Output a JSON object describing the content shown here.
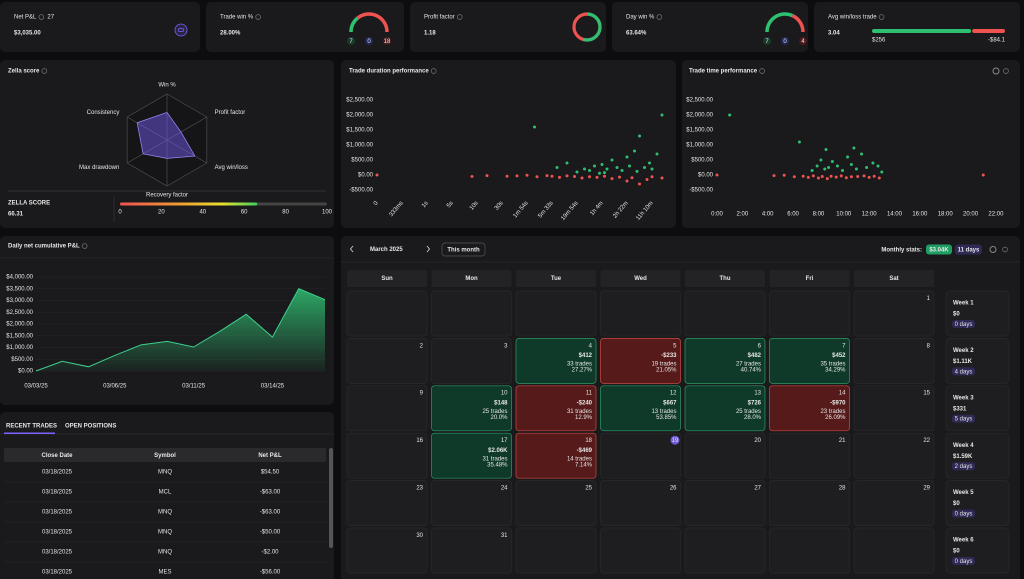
{
  "kpis": [
    {
      "title": "Net P&L",
      "badge": "27",
      "value": "$3,035.00"
    },
    {
      "title": "Trade win %",
      "value": "28.00%",
      "gauge": [
        7,
        0,
        18
      ]
    },
    {
      "title": "Profit factor",
      "value": 1.18
    },
    {
      "title": "Day win %",
      "value": "63.64%",
      "gauge": [
        7,
        0,
        4
      ]
    },
    {
      "title": "Avg win/loss trade",
      "value": 3.04,
      "avg_win": 256,
      "avg_win_label": "$256",
      "avg_loss": -84.1,
      "avg_loss_label": "-$84.1"
    }
  ],
  "chart_data": [
    {
      "type": "radar",
      "title": "Zella score",
      "categories": [
        "Win %",
        "Profit factor",
        "Avg win/loss",
        "Recovery factor",
        "Max drawdown",
        "Consistency"
      ],
      "values": [
        60,
        35,
        70,
        40,
        60,
        75
      ],
      "ylim": [
        0,
        100
      ],
      "color": "#7b61ff"
    },
    {
      "type": "scatter",
      "title": "Trade duration performance",
      "xlim": [
        -0.5,
        11.6
      ],
      "xticks": [
        0,
        {
          "value": 1,
          "label": "333ms"
        },
        {
          "value": 2,
          "label": "1s"
        },
        {
          "value": 3,
          "label": "5s"
        },
        {
          "value": 4,
          "label": "10s"
        },
        {
          "value": 5,
          "label": "30s"
        },
        {
          "value": 6,
          "label": "1m 54s"
        },
        {
          "value": 7,
          "label": "5m 33s"
        },
        {
          "value": 8,
          "label": "19m 54s"
        },
        {
          "value": 9,
          "label": "1h 4m"
        },
        {
          "value": 10,
          "label": "2h 22m"
        },
        {
          "value": 11,
          "label": "11h 10m"
        }
      ],
      "ylim": [
        -500,
        2500
      ],
      "yticks": [
        {
          "value": -500,
          "label": "-$500.00"
        },
        {
          "value": 0,
          "label": "$0.00"
        },
        {
          "value": 500,
          "label": "$500.00"
        },
        {
          "value": 1000,
          "label": "$1,000.00"
        },
        {
          "value": 1500,
          "label": "$1,500.00"
        },
        {
          "value": 2000,
          "label": "$2,000.00"
        },
        {
          "value": 2500,
          "label": "$2,500.00"
        }
      ],
      "series": [
        {
          "color": "#2fbf71",
          "x": [
            6.3,
            7.2,
            7.6,
            8.0,
            8.3,
            8.5,
            8.7,
            9.0,
            9.2,
            9.4,
            9.6,
            9.8,
            10.0,
            10.1,
            10.3,
            10.5,
            10.7,
            10.9,
            11.0,
            11.2,
            11.4,
            9.1,
            8.9,
            10.4
          ],
          "values": [
            1600,
            250,
            400,
            100,
            200,
            150,
            300,
            350,
            200,
            500,
            250,
            150,
            600,
            300,
            800,
            1300,
            250,
            400,
            200,
            700,
            2000,
            80,
            60,
            120
          ]
        },
        {
          "color": "#ef5350",
          "x": [
            0,
            3.8,
            4.4,
            5.2,
            5.6,
            6.0,
            6.4,
            6.8,
            7.0,
            7.3,
            7.6,
            7.9,
            8.2,
            8.5,
            8.8,
            9.1,
            9.4,
            9.7,
            10.0,
            10.2,
            10.5,
            10.8,
            11.0,
            11.4
          ],
          "values": [
            0,
            -50,
            -20,
            -40,
            -30,
            -10,
            -60,
            -20,
            -40,
            -80,
            -30,
            -50,
            -100,
            -60,
            -80,
            -40,
            -120,
            -70,
            -200,
            -90,
            -300,
            -150,
            -60,
            -100
          ]
        }
      ]
    },
    {
      "type": "scatter",
      "title": "Trade time performance",
      "xlim": [
        -1,
        23
      ],
      "xticks": [
        {
          "value": 0,
          "label": "0:00"
        },
        {
          "value": 2,
          "label": "2:00"
        },
        {
          "value": 4,
          "label": "4:00"
        },
        {
          "value": 6,
          "label": "6:00"
        },
        {
          "value": 8,
          "label": "8:00"
        },
        {
          "value": 10,
          "label": "10:00"
        },
        {
          "value": 12,
          "label": "12:00"
        },
        {
          "value": 14,
          "label": "14:00"
        },
        {
          "value": 16,
          "label": "16:00"
        },
        {
          "value": 18,
          "label": "18:00"
        },
        {
          "value": 20,
          "label": "20:00"
        },
        {
          "value": 22,
          "label": "22:00"
        }
      ],
      "ylim": [
        -500,
        2500
      ],
      "yticks": [
        {
          "value": -500,
          "label": "-$500.00"
        },
        {
          "value": 0,
          "label": "$0.00"
        },
        {
          "value": 500,
          "label": "$500.00"
        },
        {
          "value": 1000,
          "label": "$1,000.00"
        },
        {
          "value": 1500,
          "label": "$1,500.00"
        },
        {
          "value": 2000,
          "label": "$2,000.00"
        },
        {
          "value": 2500,
          "label": "$2,500.00"
        }
      ],
      "series": [
        {
          "color": "#2fbf71",
          "x": [
            1,
            7.5,
            7.9,
            8.2,
            8.5,
            8.8,
            9.1,
            9.5,
            9.9,
            10.3,
            10.6,
            11.0,
            11.4,
            11.8,
            12.3,
            12.7,
            13.0,
            6.5,
            8.6,
            10.8
          ],
          "values": [
            2000,
            150,
            300,
            500,
            200,
            250,
            450,
            300,
            150,
            600,
            350,
            200,
            700,
            250,
            400,
            300,
            100,
            1100,
            850,
            900
          ]
        },
        {
          "color": "#ef5350",
          "x": [
            0,
            4.5,
            5.3,
            6.1,
            6.8,
            7.2,
            7.6,
            8.0,
            8.3,
            8.7,
            9.0,
            9.4,
            9.8,
            10.2,
            10.6,
            11.1,
            11.6,
            12.0,
            12.4,
            12.8,
            21.0
          ],
          "values": [
            0,
            -20,
            -10,
            -60,
            -40,
            -80,
            -30,
            -100,
            -50,
            -120,
            -40,
            -70,
            -30,
            -90,
            -60,
            -50,
            -30,
            -80,
            -40,
            -100,
            0
          ]
        }
      ]
    },
    {
      "type": "area",
      "title": "Daily net cumulative P&L",
      "color": "#3fcf8e",
      "grid": true,
      "categories": [
        "03/03/25",
        null,
        null,
        "03/06/25",
        null,
        null,
        "03/11/25",
        null,
        null,
        "03/14/25",
        null,
        null
      ],
      "values": [
        0,
        412,
        179,
        661,
        1113,
        1261,
        1021,
        1688,
        2414,
        1444,
        3504,
        3035
      ],
      "ylim": [
        0,
        4000
      ],
      "yticks": [
        {
          "value": 0,
          "label": "$0.00"
        },
        {
          "value": 500,
          "label": "$500.00"
        },
        {
          "value": 1000,
          "label": "$1,000.00"
        },
        {
          "value": 1500,
          "label": "$1,500.00"
        },
        {
          "value": 2000,
          "label": "$2,000.00"
        },
        {
          "value": 2500,
          "label": "$2,500.00"
        },
        {
          "value": 3000,
          "label": "$3,000.00"
        },
        {
          "value": 3500,
          "label": "$3,500.00"
        },
        {
          "value": 4000,
          "label": "$4,000.00"
        }
      ]
    }
  ],
  "zella_score": {
    "label": "ZELLA SCORE",
    "value": 66.31,
    "xlim": [
      0,
      100
    ],
    "ticks": [
      0,
      20,
      40,
      60,
      80,
      100
    ]
  },
  "recent_trades": {
    "tabs": [
      "RECENT TRADES",
      "OPEN POSITIONS"
    ],
    "columns": [
      "Close Date",
      "Symbol",
      "Net P&L"
    ],
    "rows": [
      {
        "close_date": "03/18/2025",
        "symbol": "MNQ",
        "net_pnl": "$54.50",
        "color": "green"
      },
      {
        "close_date": "03/18/2025",
        "symbol": "MCL",
        "net_pnl": "-$63.00",
        "color": "red"
      },
      {
        "close_date": "03/18/2025",
        "symbol": "MNQ",
        "net_pnl": "-$63.00",
        "color": "red"
      },
      {
        "close_date": "03/18/2025",
        "symbol": "MNQ",
        "net_pnl": "-$50.00",
        "color": "red"
      },
      {
        "close_date": "03/18/2025",
        "symbol": "MNQ",
        "net_pnl": "-$2.00",
        "color": "red"
      },
      {
        "close_date": "03/18/2025",
        "symbol": "MES",
        "net_pnl": "-$56.00",
        "color": "red"
      }
    ]
  },
  "calendar": {
    "month": "March 2025",
    "button": "This month",
    "stats_label": "Monthly stats:",
    "stats_pnl": "$3.04K",
    "stats_days": "11 days",
    "weekdays": [
      "Sun",
      "Mon",
      "Tue",
      "Wed",
      "Thu",
      "Fri",
      "Sat"
    ],
    "weeks": [
      [
        null,
        null,
        null,
        null,
        null,
        null,
        {
          "day": 1
        }
      ],
      [
        {
          "day": 2
        },
        {
          "day": 3
        },
        {
          "day": 4,
          "pnl": "$412",
          "trades": "33 trades",
          "win_rate": "27.27%",
          "color": "green"
        },
        {
          "day": 5,
          "pnl": "-$233",
          "trades": "19 trades",
          "win_rate": "21.05%",
          "color": "red"
        },
        {
          "day": 6,
          "pnl": "$482",
          "trades": "27 trades",
          "win_rate": "40.74%",
          "color": "green"
        },
        {
          "day": 7,
          "pnl": "$452",
          "trades": "35 trades",
          "win_rate": "34.29%",
          "color": "green"
        },
        {
          "day": 8
        }
      ],
      [
        {
          "day": 9
        },
        {
          "day": 10,
          "pnl": "$148",
          "trades": "25 trades",
          "win_rate": "20.0%",
          "color": "green"
        },
        {
          "day": 11,
          "pnl": "-$240",
          "trades": "31 trades",
          "win_rate": "12.9%",
          "color": "red"
        },
        {
          "day": 12,
          "pnl": "$667",
          "trades": "13 trades",
          "win_rate": "53.85%",
          "color": "green"
        },
        {
          "day": 13,
          "pnl": "$726",
          "trades": "25 trades",
          "win_rate": "28.0%",
          "color": "green"
        },
        {
          "day": 14,
          "pnl": "-$970",
          "trades": "23 trades",
          "win_rate": "26.09%",
          "color": "red"
        },
        {
          "day": 15
        }
      ],
      [
        {
          "day": 16
        },
        {
          "day": 17,
          "pnl": "$2.06K",
          "trades": "31 trades",
          "win_rate": "35.48%",
          "color": "green"
        },
        {
          "day": 18,
          "pnl": "-$469",
          "trades": "14 trades",
          "win_rate": "7.14%",
          "color": "red"
        },
        {
          "day": 19,
          "today": true
        },
        {
          "day": 20
        },
        {
          "day": 21
        },
        {
          "day": 22
        }
      ],
      [
        {
          "day": 23
        },
        {
          "day": 24
        },
        {
          "day": 25
        },
        {
          "day": 26
        },
        {
          "day": 27
        },
        {
          "day": 28
        },
        {
          "day": 29
        }
      ],
      [
        {
          "day": 30
        },
        {
          "day": 31
        },
        null,
        null,
        null,
        null,
        null
      ]
    ],
    "week_summaries": [
      {
        "label": "Week 1",
        "pnl": "$0",
        "days": "0 days"
      },
      {
        "label": "Week 2",
        "pnl": "$1.11K",
        "days": "4 days",
        "color": "green"
      },
      {
        "label": "Week 3",
        "pnl": "$331",
        "days": "5 days",
        "color": "green"
      },
      {
        "label": "Week 4",
        "pnl": "$1.59K",
        "days": "2 days",
        "color": "green"
      },
      {
        "label": "Week 5",
        "pnl": "$0",
        "days": "0 days"
      },
      {
        "label": "Week 6",
        "pnl": "$0",
        "days": "0 days"
      }
    ]
  }
}
